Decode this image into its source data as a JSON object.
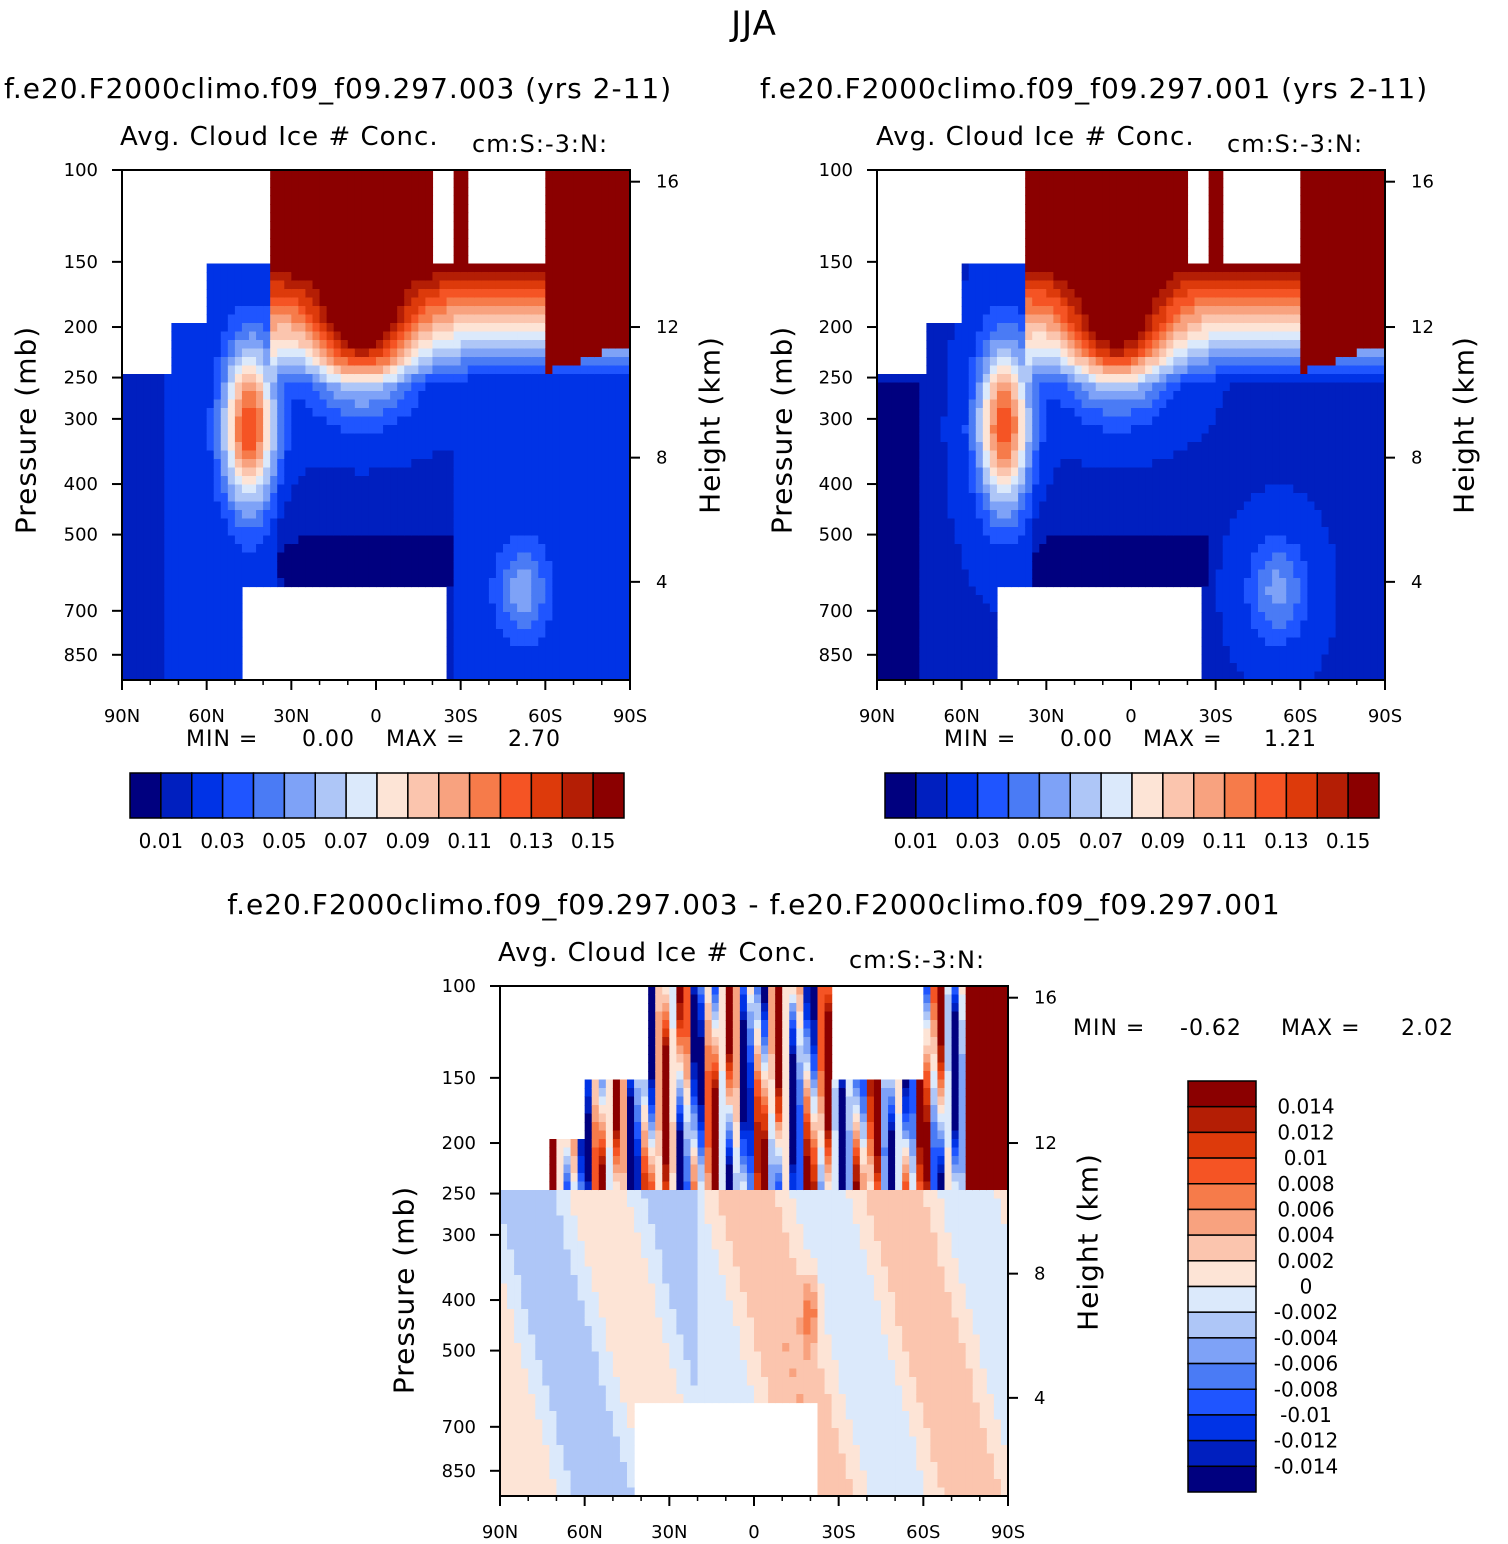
{
  "title": "JJA",
  "panels": [
    {
      "case_title": "f.e20.F2000climo.f09_f09.297.003 (yrs 2-11)",
      "field_title": "Avg. Cloud Ice # Conc.",
      "units": "cm:S:-3:N:",
      "y_title": "Pressure (mb)",
      "y2_title": "Height (km)",
      "min_label": "MIN =",
      "min_value": "0.00",
      "max_label": "MAX =",
      "max_value": "2.70"
    },
    {
      "case_title": "f.e20.F2000climo.f09_f09.297.001 (yrs 2-11)",
      "field_title": "Avg. Cloud Ice # Conc.",
      "units": "cm:S:-3:N:",
      "y_title": "Pressure (mb)",
      "y2_title": "Height (km)",
      "min_label": "MIN =",
      "min_value": "0.00",
      "max_label": "MAX =",
      "max_value": "1.21"
    },
    {
      "case_title": "f.e20.F2000climo.f09_f09.297.003 - f.e20.F2000climo.f09_f09.297.001",
      "field_title": "Avg. Cloud Ice # Conc.",
      "units": "cm:S:-3:N:",
      "y_title": "Pressure (mb)",
      "y2_title": "Height (km)",
      "min_label": "MIN =",
      "min_value": "-0.62",
      "max_label": "MAX =",
      "max_value": "2.02"
    }
  ],
  "chart_data": [
    {
      "type": "heatmap",
      "x_ticks": [
        "90N",
        "60N",
        "30N",
        "0",
        "30S",
        "60S",
        "90S"
      ],
      "y_ticks": [
        "100",
        "150",
        "200",
        "250",
        "300",
        "400",
        "500",
        "700",
        "850"
      ],
      "y_tick_values": [
        100,
        150,
        200,
        250,
        300,
        400,
        500,
        700,
        850
      ],
      "y2_ticks": [
        "16",
        "12",
        "8",
        "4"
      ],
      "colorbar_labels": [
        "0.01",
        "0.03",
        "0.05",
        "0.07",
        "0.09",
        "0.11",
        "0.13",
        "0.15"
      ],
      "colorbar_levels": [
        0.01,
        0.02,
        0.03,
        0.04,
        0.05,
        0.06,
        0.07,
        0.08,
        0.09,
        0.1,
        0.11,
        0.12,
        0.13,
        0.14,
        0.15
      ],
      "colorbar_colors": [
        "#00007f",
        "#001fbf",
        "#0033e6",
        "#1f55ff",
        "#4a7bf5",
        "#7ea2f7",
        "#aec6f7",
        "#dbe9fb",
        "#fde4d6",
        "#fbc5ae",
        "#f8a27f",
        "#f67b4a",
        "#f55424",
        "#dd3a0b",
        "#b41e05",
        "#8b0000"
      ],
      "min": 0.0,
      "max": 2.7
    },
    {
      "type": "heatmap",
      "x_ticks": [
        "90N",
        "60N",
        "30N",
        "0",
        "30S",
        "60S",
        "90S"
      ],
      "y_ticks": [
        "100",
        "150",
        "200",
        "250",
        "300",
        "400",
        "500",
        "700",
        "850"
      ],
      "y_tick_values": [
        100,
        150,
        200,
        250,
        300,
        400,
        500,
        700,
        850
      ],
      "y2_ticks": [
        "16",
        "12",
        "8",
        "4"
      ],
      "colorbar_labels": [
        "0.01",
        "0.03",
        "0.05",
        "0.07",
        "0.09",
        "0.11",
        "0.13",
        "0.15"
      ],
      "colorbar_levels": [
        0.01,
        0.02,
        0.03,
        0.04,
        0.05,
        0.06,
        0.07,
        0.08,
        0.09,
        0.1,
        0.11,
        0.12,
        0.13,
        0.14,
        0.15
      ],
      "colorbar_colors": [
        "#00007f",
        "#001fbf",
        "#0033e6",
        "#1f55ff",
        "#4a7bf5",
        "#7ea2f7",
        "#aec6f7",
        "#dbe9fb",
        "#fde4d6",
        "#fbc5ae",
        "#f8a27f",
        "#f67b4a",
        "#f55424",
        "#dd3a0b",
        "#b41e05",
        "#8b0000"
      ],
      "min": 0.0,
      "max": 1.21
    },
    {
      "type": "heatmap",
      "x_ticks": [
        "90N",
        "60N",
        "30N",
        "0",
        "30S",
        "60S",
        "90S"
      ],
      "y_ticks": [
        "100",
        "150",
        "200",
        "250",
        "300",
        "400",
        "500",
        "700",
        "850"
      ],
      "y_tick_values": [
        100,
        150,
        200,
        250,
        300,
        400,
        500,
        700,
        850
      ],
      "y2_ticks": [
        "16",
        "12",
        "8",
        "4"
      ],
      "colorbar_labels": [
        "0.014",
        "0.012",
        "0.01",
        "0.008",
        "0.006",
        "0.004",
        "0.002",
        "0",
        "-0.002",
        "-0.004",
        "-0.006",
        "-0.008",
        "-0.01",
        "-0.012",
        "-0.014"
      ],
      "colorbar_colors": [
        "#8b0000",
        "#b41e05",
        "#dd3a0b",
        "#f55424",
        "#f67b4a",
        "#f8a27f",
        "#fbc5ae",
        "#fde4d6",
        "#dbe9fb",
        "#aec6f7",
        "#7ea2f7",
        "#4a7bf5",
        "#1f55ff",
        "#0033e6",
        "#001fbf",
        "#00007f"
      ],
      "min": -0.62,
      "max": 2.02
    }
  ]
}
